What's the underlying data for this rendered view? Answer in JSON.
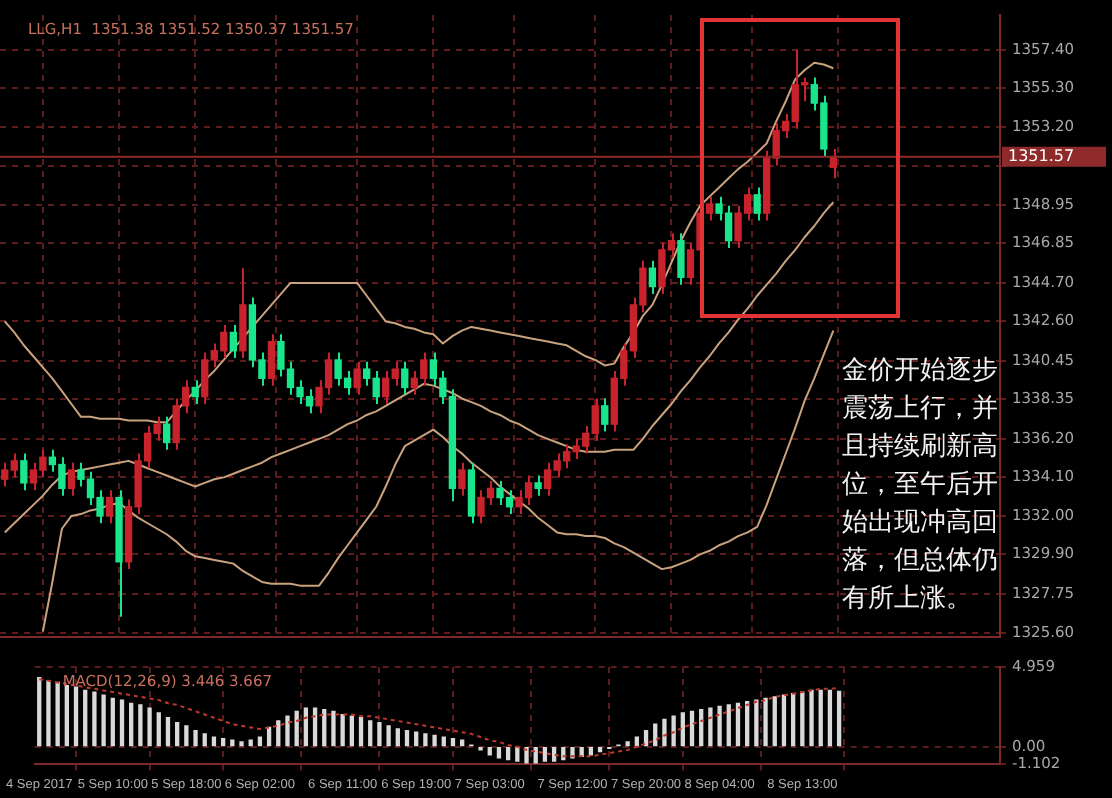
{
  "chart_data": [
    {
      "type": "candlestick",
      "title": "LLG,H1  1351.38 1351.52 1350.37 1351.57",
      "categories": [
        null,
        null,
        null,
        null,
        null,
        null,
        null,
        null,
        null,
        null,
        null,
        null,
        null,
        null,
        null,
        null,
        null,
        null,
        null,
        null,
        null,
        null,
        null,
        null,
        null,
        null,
        null,
        null,
        null,
        null,
        null,
        null,
        null,
        null,
        null,
        null,
        null,
        null,
        null,
        null,
        null,
        null,
        null,
        null,
        null,
        null,
        null,
        null,
        null,
        null,
        null,
        null,
        null,
        null,
        null,
        null,
        null,
        null,
        null,
        null,
        null,
        null,
        null,
        null,
        null,
        null,
        null,
        null,
        null,
        null,
        null,
        null,
        null,
        null,
        null,
        null,
        null,
        null,
        null,
        null,
        null,
        null,
        null,
        null,
        null,
        null,
        null,
        null
      ],
      "ohlc": [
        [
          1334.0,
          1334.9,
          1333.6,
          1334.5
        ],
        [
          1334.5,
          1335.4,
          1334.1,
          1335.0
        ],
        [
          1335.0,
          1335.4,
          1333.4,
          1333.8
        ],
        [
          1333.8,
          1334.9,
          1333.4,
          1334.5
        ],
        [
          1334.5,
          1335.6,
          1334.1,
          1335.2
        ],
        [
          1335.2,
          1335.6,
          1334.4,
          1334.8
        ],
        [
          1334.8,
          1335.2,
          1333.1,
          1333.5
        ],
        [
          1333.5,
          1334.9,
          1333.1,
          1334.5
        ],
        [
          1334.5,
          1334.9,
          1333.6,
          1334.0
        ],
        [
          1334.0,
          1334.4,
          1332.6,
          1333.0
        ],
        [
          1333.0,
          1333.4,
          1331.6,
          1332.0
        ],
        [
          1332.0,
          1333.4,
          1331.6,
          1333.0
        ],
        [
          1333.0,
          1333.4,
          1326.5,
          1329.5
        ],
        [
          1329.5,
          1332.9,
          1329.1,
          1332.5
        ],
        [
          1332.5,
          1335.4,
          1332.1,
          1335.0
        ],
        [
          1335.0,
          1336.9,
          1334.6,
          1336.5
        ],
        [
          1336.5,
          1337.4,
          1336.1,
          1337.0
        ],
        [
          1337.0,
          1337.4,
          1335.6,
          1336.0
        ],
        [
          1336.0,
          1338.4,
          1335.6,
          1338.0
        ],
        [
          1338.0,
          1339.4,
          1337.6,
          1339.0
        ],
        [
          1339.0,
          1339.4,
          1338.1,
          1338.5
        ],
        [
          1338.5,
          1340.9,
          1338.1,
          1340.5
        ],
        [
          1340.5,
          1341.4,
          1340.1,
          1341.0
        ],
        [
          1341.0,
          1342.4,
          1340.6,
          1342.0
        ],
        [
          1342.0,
          1342.4,
          1340.6,
          1341.0
        ],
        [
          1341.0,
          1345.5,
          1340.6,
          1343.5
        ],
        [
          1343.5,
          1343.9,
          1340.1,
          1340.5
        ],
        [
          1340.5,
          1340.9,
          1339.1,
          1339.5
        ],
        [
          1339.5,
          1341.9,
          1339.1,
          1341.5
        ],
        [
          1341.5,
          1341.9,
          1339.6,
          1340.0
        ],
        [
          1340.0,
          1340.4,
          1338.6,
          1339.0
        ],
        [
          1339.0,
          1339.4,
          1338.1,
          1338.5
        ],
        [
          1338.5,
          1338.9,
          1337.6,
          1338.0
        ],
        [
          1338.0,
          1339.4,
          1337.6,
          1339.0
        ],
        [
          1339.0,
          1340.9,
          1338.6,
          1340.5
        ],
        [
          1340.5,
          1340.9,
          1339.1,
          1339.5
        ],
        [
          1339.5,
          1339.9,
          1338.6,
          1339.0
        ],
        [
          1339.0,
          1340.4,
          1338.6,
          1340.0
        ],
        [
          1340.0,
          1340.4,
          1339.1,
          1339.5
        ],
        [
          1339.5,
          1339.9,
          1338.1,
          1338.5
        ],
        [
          1338.5,
          1339.9,
          1338.1,
          1339.5
        ],
        [
          1339.5,
          1340.4,
          1339.1,
          1340.0
        ],
        [
          1340.0,
          1340.4,
          1338.6,
          1339.0
        ],
        [
          1339.0,
          1339.9,
          1338.6,
          1339.5
        ],
        [
          1339.5,
          1340.9,
          1339.1,
          1340.5
        ],
        [
          1340.5,
          1340.9,
          1339.1,
          1339.5
        ],
        [
          1339.5,
          1339.9,
          1338.1,
          1338.5
        ],
        [
          1338.5,
          1338.9,
          1332.8,
          1333.5
        ],
        [
          1333.5,
          1334.9,
          1333.1,
          1334.5
        ],
        [
          1334.5,
          1334.9,
          1331.6,
          1332.0
        ],
        [
          1332.0,
          1333.4,
          1331.6,
          1333.0
        ],
        [
          1333.0,
          1333.9,
          1332.6,
          1333.5
        ],
        [
          1333.5,
          1333.9,
          1332.6,
          1333.0
        ],
        [
          1333.0,
          1333.4,
          1332.1,
          1332.5
        ],
        [
          1332.5,
          1333.4,
          1332.1,
          1333.0
        ],
        [
          1333.0,
          1334.2,
          1332.6,
          1333.8
        ],
        [
          1333.8,
          1334.2,
          1333.1,
          1333.5
        ],
        [
          1333.5,
          1334.9,
          1333.1,
          1334.5
        ],
        [
          1334.5,
          1335.4,
          1334.1,
          1335.0
        ],
        [
          1335.0,
          1335.9,
          1334.6,
          1335.5
        ],
        [
          1335.5,
          1336.2,
          1335.1,
          1335.8
        ],
        [
          1335.8,
          1336.9,
          1335.4,
          1336.5
        ],
        [
          1336.5,
          1338.4,
          1336.1,
          1338.0
        ],
        [
          1338.0,
          1338.4,
          1336.6,
          1337.0
        ],
        [
          1337.0,
          1339.9,
          1336.6,
          1339.5
        ],
        [
          1339.5,
          1341.4,
          1339.1,
          1341.0
        ],
        [
          1341.0,
          1343.9,
          1340.6,
          1343.5
        ],
        [
          1343.5,
          1345.9,
          1343.1,
          1345.5
        ],
        [
          1345.5,
          1345.9,
          1344.1,
          1344.5
        ],
        [
          1344.5,
          1346.9,
          1344.1,
          1346.5
        ],
        [
          1346.5,
          1347.4,
          1346.1,
          1347.0
        ],
        [
          1347.0,
          1347.4,
          1344.6,
          1345.0
        ],
        [
          1345.0,
          1346.9,
          1344.6,
          1346.5
        ],
        [
          1346.5,
          1348.9,
          1346.1,
          1348.5
        ],
        [
          1348.5,
          1349.4,
          1348.1,
          1349.0
        ],
        [
          1349.0,
          1349.4,
          1348.1,
          1348.5
        ],
        [
          1348.5,
          1348.9,
          1346.6,
          1347.0
        ],
        [
          1347.0,
          1348.9,
          1346.6,
          1348.5
        ],
        [
          1348.5,
          1349.9,
          1348.1,
          1349.5
        ],
        [
          1349.5,
          1349.9,
          1348.1,
          1348.5
        ],
        [
          1348.5,
          1351.9,
          1348.1,
          1351.5
        ],
        [
          1351.5,
          1353.4,
          1351.1,
          1353.0
        ],
        [
          1353.0,
          1353.9,
          1352.6,
          1353.5
        ],
        [
          1353.5,
          1357.4,
          1353.1,
          1355.5
        ],
        [
          1355.5,
          1355.9,
          1354.6,
          1355.5
        ],
        [
          1355.5,
          1355.9,
          1354.1,
          1354.5
        ],
        [
          1354.5,
          1354.9,
          1351.6,
          1352.0
        ],
        [
          1351.0,
          1352.0,
          1350.4,
          1351.57
        ]
      ],
      "colors": [
        "#c8232c",
        "#c8232c",
        "#19e68c",
        "#c8232c",
        "#c8232c",
        "#19e68c",
        "#19e68c",
        "#c8232c",
        "#19e68c",
        "#19e68c",
        "#19e68c",
        "#c8232c",
        "#19e68c",
        "#c8232c",
        "#c8232c",
        "#c8232c",
        "#c8232c",
        "#19e68c",
        "#c8232c",
        "#c8232c",
        "#19e68c",
        "#c8232c",
        "#c8232c",
        "#c8232c",
        "#19e68c",
        "#c8232c",
        "#19e68c",
        "#19e68c",
        "#c8232c",
        "#19e68c",
        "#19e68c",
        "#19e68c",
        "#19e68c",
        "#c8232c",
        "#c8232c",
        "#19e68c",
        "#19e68c",
        "#c8232c",
        "#19e68c",
        "#19e68c",
        "#c8232c",
        "#c8232c",
        "#19e68c",
        "#c8232c",
        "#c8232c",
        "#19e68c",
        "#19e68c",
        "#19e68c",
        "#c8232c",
        "#19e68c",
        "#c8232c",
        "#c8232c",
        "#19e68c",
        "#19e68c",
        "#c8232c",
        "#c8232c",
        "#19e68c",
        "#c8232c",
        "#c8232c",
        "#c8232c",
        "#c8232c",
        "#c8232c",
        "#c8232c",
        "#19e68c",
        "#c8232c",
        "#c8232c",
        "#c8232c",
        "#c8232c",
        "#19e68c",
        "#c8232c",
        "#c8232c",
        "#19e68c",
        "#c8232c",
        "#c8232c",
        "#c8232c",
        "#19e68c",
        "#19e68c",
        "#c8232c",
        "#c8232c",
        "#19e68c",
        "#c8232c",
        "#c8232c",
        "#c8232c",
        "#c8232c",
        "#c8232c",
        "#19e68c",
        "#19e68c",
        "#c8232c"
      ],
      "series": [
        {
          "type": "line",
          "color": "#c9a27e",
          "values": [
            1342.6,
            1342.0,
            1341.3,
            1340.7,
            1340.1,
            1339.5,
            1338.8,
            1338.1,
            1337.4,
            1337.4,
            1337.3,
            1337.3,
            1337.3,
            1337.2,
            1337.2,
            1337.2,
            1337.1,
            1337.1,
            1337.7,
            1338.3,
            1338.8,
            1339.4,
            1339.9,
            1340.5,
            1341.1,
            1341.7,
            1342.3,
            1342.9,
            1343.5,
            1344.1,
            1344.7,
            1344.7,
            1344.7,
            1344.7,
            1344.7,
            1344.7,
            1344.7,
            1344.7,
            1344.0,
            1343.3,
            1342.6,
            1342.5,
            1342.3,
            1342.2,
            1342.0,
            1341.9,
            1341.4,
            1341.8,
            1342.1,
            1342.3,
            1342.2,
            1342.1,
            1342.0,
            1341.9,
            1341.8,
            1341.7,
            1341.6,
            1341.5,
            1341.4,
            1341.3,
            1341.0,
            1340.7,
            1340.5,
            1340.2,
            1340.3,
            1341.2,
            1342.0,
            1342.9,
            1343.5,
            1344.6,
            1345.8,
            1347.0,
            1348.0,
            1348.9,
            1349.4,
            1349.9,
            1350.4,
            1350.9,
            1351.3,
            1351.8,
            1352.3,
            1353.5,
            1354.6,
            1355.8,
            1356.3,
            1356.7,
            1356.6,
            1356.4
          ]
        },
        {
          "type": "line",
          "color": "#c9a27e",
          "values": [
            1331.1,
            1331.6,
            1332.1,
            1332.6,
            1333.1,
            1333.7,
            1334.2,
            1334.4,
            1334.5,
            1334.6,
            1334.7,
            1334.8,
            1334.9,
            1335.0,
            1334.8,
            1334.6,
            1334.4,
            1334.2,
            1334.0,
            1333.8,
            1333.6,
            1333.8,
            1334.0,
            1334.1,
            1334.3,
            1334.5,
            1334.7,
            1334.9,
            1335.2,
            1335.4,
            1335.6,
            1335.8,
            1336.0,
            1336.2,
            1336.4,
            1336.7,
            1337.0,
            1337.2,
            1337.5,
            1337.7,
            1338.0,
            1338.3,
            1338.6,
            1338.9,
            1339.2,
            1339.1,
            1338.9,
            1338.7,
            1338.4,
            1338.2,
            1338.0,
            1337.7,
            1337.5,
            1337.2,
            1337.0,
            1336.7,
            1336.4,
            1336.2,
            1336.0,
            1335.8,
            1335.6,
            1335.5,
            1335.5,
            1335.5,
            1335.6,
            1335.6,
            1335.6,
            1336.2,
            1336.9,
            1337.5,
            1338.1,
            1338.8,
            1339.4,
            1340.1,
            1340.7,
            1341.4,
            1342.0,
            1342.7,
            1343.3,
            1344.0,
            1344.6,
            1345.2,
            1345.9,
            1346.5,
            1347.2,
            1347.8,
            1348.5,
            1349.1
          ]
        },
        {
          "type": "line",
          "color": "#c9a27e",
          "values": [
            null,
            null,
            null,
            null,
            1325.7,
            1328.4,
            1331.3,
            1332.0,
            1332.1,
            1332.3,
            1332.4,
            1332.6,
            1332.7,
            1332.3,
            1331.9,
            1331.6,
            1331.3,
            1331.0,
            1330.6,
            1330.1,
            1329.8,
            1329.7,
            1329.6,
            1329.5,
            1329.4,
            1329.0,
            1328.7,
            1328.4,
            1328.3,
            1328.3,
            1328.3,
            1328.2,
            1328.2,
            1328.2,
            1328.9,
            1329.7,
            1330.4,
            1331.1,
            1331.8,
            1332.5,
            1333.6,
            1334.8,
            1335.8,
            1336.1,
            1336.4,
            1336.7,
            1336.3,
            1335.8,
            1335.4,
            1334.9,
            1334.5,
            1334.1,
            1333.6,
            1333.2,
            1332.8,
            1332.4,
            1331.9,
            1331.5,
            1331.1,
            1331.0,
            1331.0,
            1330.9,
            1330.9,
            1330.8,
            1330.5,
            1330.3,
            1330.0,
            1329.7,
            1329.4,
            1329.1,
            1329.2,
            1329.4,
            1329.6,
            1329.9,
            1330.1,
            1330.4,
            1330.6,
            1330.9,
            1331.1,
            1331.4,
            1332.6,
            1334.0,
            1335.4,
            1336.8,
            1338.3,
            1339.5,
            1340.8,
            1342.1
          ]
        }
      ],
      "ylim": [
        1325.4,
        1359.3
      ],
      "yticks": [
        {
          "value": 1325.6,
          "label": "1325.60"
        },
        {
          "value": 1327.75,
          "label": "1327.75"
        },
        {
          "value": 1329.9,
          "label": "1329.90"
        },
        {
          "value": 1332.0,
          "label": "1332.00"
        },
        {
          "value": 1334.1,
          "label": "1334.10"
        },
        {
          "value": 1336.2,
          "label": "1336.20"
        },
        {
          "value": 1338.35,
          "label": "1338.35"
        },
        {
          "value": 1340.45,
          "label": "1340.45"
        },
        {
          "value": 1342.6,
          "label": "1342.60"
        },
        {
          "value": 1344.7,
          "label": "1344.70"
        },
        {
          "value": 1346.85,
          "label": "1346.85"
        },
        {
          "value": 1348.95,
          "label": "1348.95"
        },
        {
          "value": 1351.05,
          "label": null
        },
        {
          "value": 1353.2,
          "label": "1353.20"
        },
        {
          "value": 1355.3,
          "label": "1355.30"
        },
        {
          "value": 1357.4,
          "label": "1357.40"
        }
      ],
      "ref_lines": [
        {
          "axis": "y",
          "value": 1351.57,
          "label": "1351.57",
          "color": "#8e2a2a"
        }
      ],
      "annotations": [
        "金价开始逐步震荡上行，并且持续刷新高位，至午后开始出现冲高回落，但总体仍有所上涨。"
      ],
      "grid": true,
      "tick_labels": "y"
    },
    {
      "type": "bar",
      "title": "MACD(12,26,9) 3.446 3.667",
      "categories": [
        "4 Sep 2017",
        null,
        null,
        null,
        null,
        null,
        null,
        null,
        "5 Sep 10:00",
        null,
        null,
        null,
        null,
        null,
        null,
        null,
        "5 Sep 18:00",
        null,
        null,
        null,
        null,
        null,
        null,
        null,
        "6 Sep 02:00",
        null,
        null,
        null,
        null,
        null,
        null,
        null,
        null,
        "6 Sep 11:00",
        null,
        null,
        null,
        null,
        null,
        null,
        null,
        "6 Sep 19:00",
        null,
        null,
        null,
        null,
        null,
        null,
        null,
        "7 Sep 03:00",
        null,
        null,
        null,
        null,
        null,
        null,
        null,
        null,
        "7 Sep 12:00",
        null,
        null,
        null,
        null,
        null,
        null,
        null,
        "7 Sep 20:00",
        null,
        null,
        null,
        null,
        null,
        null,
        null,
        "8 Sep 04:00",
        null,
        null,
        null,
        null,
        null,
        null,
        null,
        null,
        "8 Sep 13:00",
        null,
        null,
        null,
        null
      ],
      "series": [
        {
          "type": "bar",
          "color": "#d9d9d9",
          "values": [
            4.3,
            4.1,
            4.0,
            3.8,
            3.7,
            3.5,
            3.4,
            3.2,
            3.0,
            2.9,
            2.7,
            2.6,
            2.4,
            2.1,
            1.8,
            1.5,
            1.3,
            1.0,
            0.8,
            0.6,
            0.5,
            0.4,
            0.3,
            0.4,
            0.6,
            1.2,
            1.6,
            1.9,
            2.2,
            2.4,
            2.4,
            2.3,
            2.2,
            2.0,
            1.9,
            1.8,
            1.6,
            1.5,
            1.3,
            1.1,
            1.0,
            0.9,
            0.8,
            0.7,
            0.6,
            0.5,
            0.4,
            0.1,
            -0.2,
            -0.5,
            -0.7,
            -0.8,
            -0.9,
            -1.0,
            -1.0,
            -0.9,
            -0.9,
            -0.8,
            -0.7,
            -0.6,
            -0.5,
            -0.3,
            -0.1,
            0.1,
            0.3,
            0.6,
            1.0,
            1.4,
            1.7,
            1.9,
            2.1,
            2.2,
            2.3,
            2.4,
            2.5,
            2.6,
            2.7,
            2.8,
            2.9,
            3.0,
            3.1,
            3.2,
            3.3,
            3.4,
            3.5,
            3.5,
            3.5,
            3.446
          ]
        },
        {
          "type": "line",
          "color": "#c0392b",
          "line_style": "dotted",
          "values": [
            4.2,
            4.1,
            4.0,
            3.9,
            3.8,
            3.7,
            3.6,
            3.5,
            3.4,
            3.3,
            3.2,
            3.1,
            3.0,
            2.9,
            2.7,
            2.6,
            2.4,
            2.2,
            2.0,
            1.8,
            1.6,
            1.4,
            1.3,
            1.2,
            1.1,
            1.2,
            1.3,
            1.5,
            1.6,
            1.8,
            1.9,
            2.0,
            2.0,
            2.0,
            2.0,
            1.9,
            1.9,
            1.8,
            1.7,
            1.6,
            1.5,
            1.4,
            1.3,
            1.2,
            1.1,
            1.0,
            0.9,
            0.8,
            0.6,
            0.4,
            0.3,
            0.1,
            0.0,
            -0.2,
            -0.3,
            -0.4,
            -0.5,
            -0.6,
            -0.6,
            -0.6,
            -0.6,
            -0.5,
            -0.4,
            -0.3,
            -0.2,
            0.0,
            0.2,
            0.4,
            0.7,
            0.9,
            1.2,
            1.4,
            1.6,
            1.8,
            2.0,
            2.2,
            2.4,
            2.6,
            2.8,
            2.9,
            3.1,
            3.2,
            3.3,
            3.4,
            3.5,
            3.6,
            3.6,
            3.667
          ]
        }
      ],
      "ylim": [
        -1.102,
        4.959
      ],
      "yticks": [
        {
          "value": -1.102,
          "label": "-1.102"
        },
        {
          "value": 0,
          "label": "0.00"
        },
        {
          "value": 4.959,
          "label": "4.959"
        }
      ],
      "grid": true
    }
  ]
}
